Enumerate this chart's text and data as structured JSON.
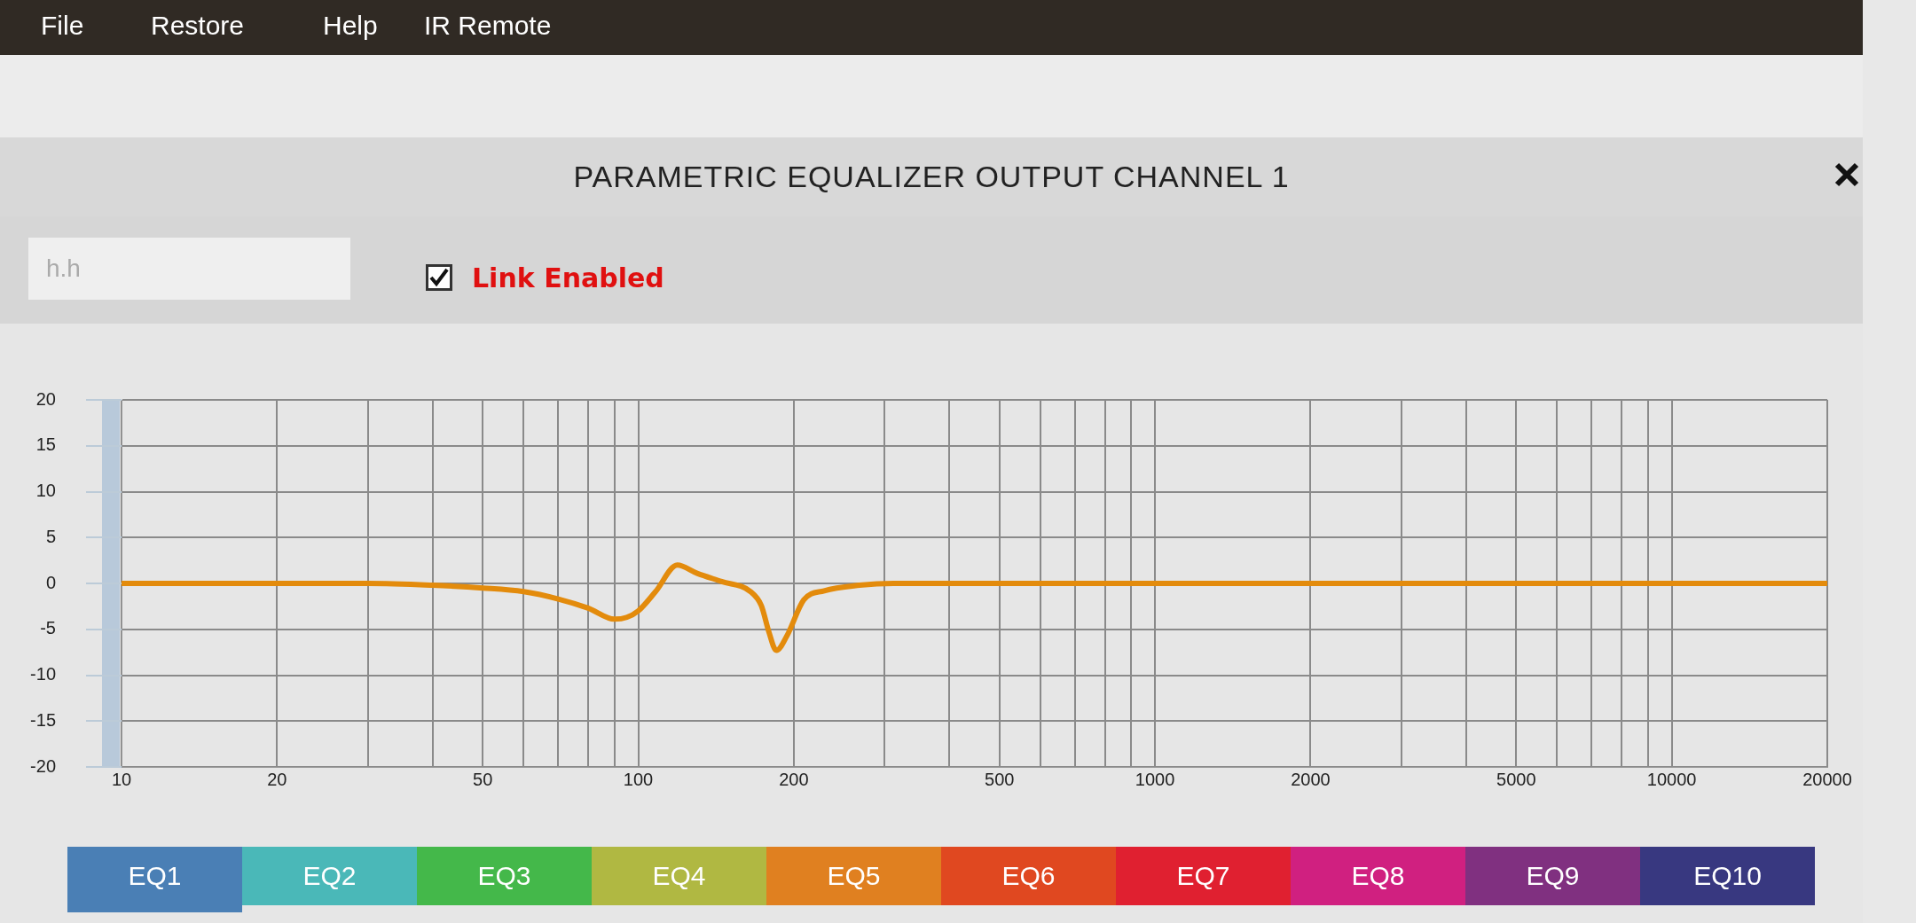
{
  "chart_data": {
    "type": "line",
    "title": "PARAMETRIC EQUALIZER OUTPUT CHANNEL 1",
    "x": [
      10,
      20,
      30,
      40,
      50,
      60,
      70,
      80,
      90,
      95,
      100,
      108,
      119,
      130,
      145,
      165,
      173,
      179,
      185,
      194,
      209,
      229,
      268,
      312,
      426,
      1000,
      20000
    ],
    "series": [
      {
        "color": "#e38b0c",
        "values": [
          0,
          0,
          0,
          -0.2,
          -0.5,
          -0.9,
          -1.7,
          -2.7,
          -3.9,
          -3.7,
          -3.0,
          -0.9,
          2.0,
          1.1,
          0.2,
          -0.9,
          -2.4,
          -5.3,
          -7.3,
          -5.7,
          -1.8,
          -0.8,
          -0.2,
          0,
          0,
          0,
          0
        ]
      }
    ],
    "xlim": [
      10,
      20000
    ],
    "xticks": [
      10,
      20,
      {
        "value": 30,
        "label": null
      },
      {
        "value": 40,
        "label": null
      },
      50,
      {
        "value": 60,
        "label": null
      },
      {
        "value": 70,
        "label": null
      },
      {
        "value": 80,
        "label": null
      },
      {
        "value": 90,
        "label": null
      },
      100,
      200,
      {
        "value": 300,
        "label": null
      },
      {
        "value": 400,
        "label": null
      },
      500,
      {
        "value": 600,
        "label": null
      },
      {
        "value": 700,
        "label": null
      },
      {
        "value": 800,
        "label": null
      },
      {
        "value": 900,
        "label": null
      },
      1000,
      2000,
      {
        "value": 3000,
        "label": null
      },
      {
        "value": 4000,
        "label": null
      },
      5000,
      {
        "value": 6000,
        "label": null
      },
      {
        "value": 7000,
        "label": null
      },
      {
        "value": 8000,
        "label": null
      },
      {
        "value": 9000,
        "label": null
      },
      10000,
      20000
    ],
    "ylim": [
      -20,
      20
    ],
    "yticks": [
      -20,
      -15,
      -10,
      -5,
      0,
      5,
      10,
      15,
      20
    ],
    "log": "x",
    "grid": true,
    "legend": false,
    "marker": "none",
    "line_style": "solid",
    "annotations": [
      "File",
      "Restore",
      "Help",
      "IR Remote",
      "h.h",
      "Link Enabled",
      "EQ1",
      "EQ2",
      "EQ3",
      "EQ4",
      "EQ5",
      "EQ6",
      "EQ7",
      "EQ8",
      "EQ9",
      "EQ10"
    ]
  }
}
